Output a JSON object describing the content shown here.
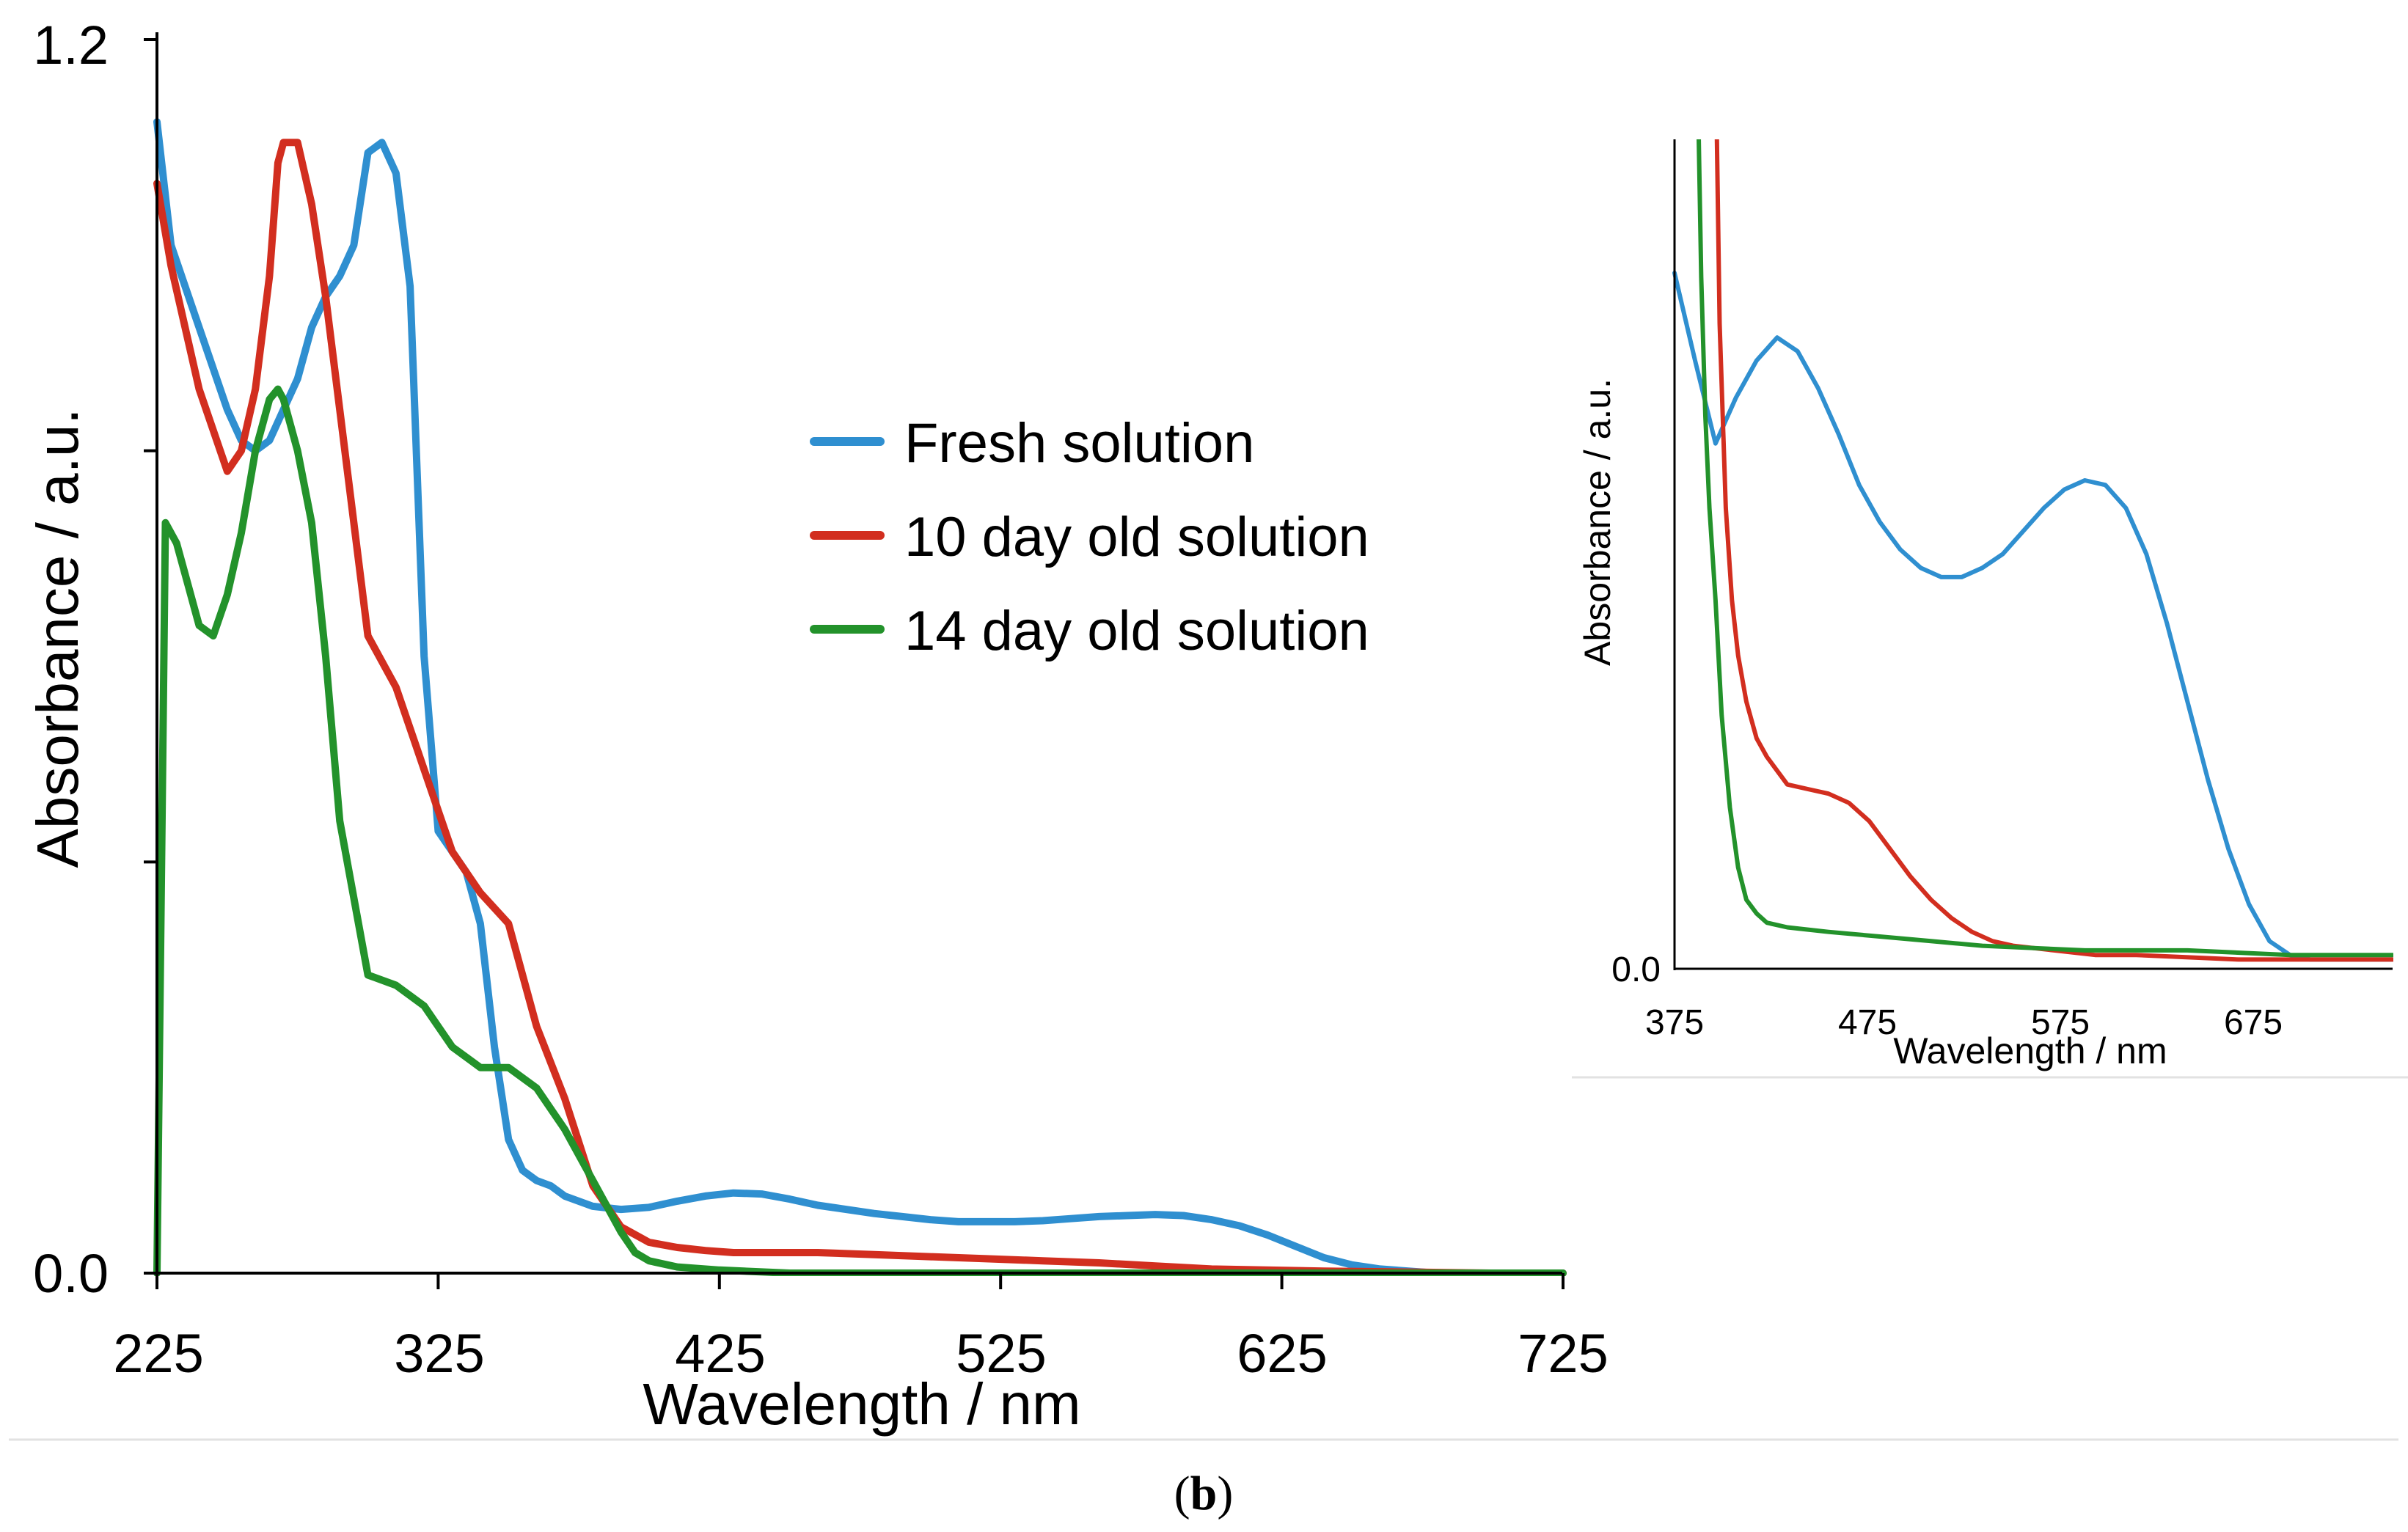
{
  "figure": {
    "panel_label_open": "(",
    "panel_label_letter": "b",
    "panel_label_close": ")"
  },
  "colors": {
    "fresh": "#2f8fd0",
    "ten_day": "#d22e1f",
    "fourteen_day": "#23922b",
    "axis": "#000000",
    "separator": "#e2e2e2"
  },
  "chart_data": [
    {
      "type": "line",
      "id": "main",
      "title": "",
      "xlabel": "Wavelength / nm",
      "ylabel": "Absorbance / a.u.",
      "xlim": [
        225,
        725
      ],
      "ylim": [
        0,
        1.2
      ],
      "x_ticks": [
        225,
        325,
        425,
        525,
        625,
        725
      ],
      "x_tick_labels": [
        "225",
        "325",
        "425",
        "525",
        "625",
        "725"
      ],
      "y_ticks": [
        0,
        0.4,
        0.8,
        1.2
      ],
      "y_tick_labels": [
        "0.0",
        "",
        "",
        "1.2"
      ],
      "grid": false,
      "legend_position": "center-right",
      "series": [
        {
          "name": "Fresh solution",
          "color_key": "fresh",
          "x": [
            225,
            230,
            240,
            250,
            255,
            260,
            265,
            270,
            275,
            280,
            285,
            290,
            295,
            300,
            305,
            310,
            315,
            320,
            325,
            330,
            335,
            340,
            345,
            350,
            355,
            360,
            365,
            370,
            380,
            390,
            400,
            410,
            420,
            430,
            440,
            450,
            460,
            470,
            480,
            490,
            500,
            510,
            520,
            530,
            540,
            550,
            560,
            570,
            580,
            590,
            600,
            610,
            620,
            630,
            640,
            650,
            660,
            670,
            680,
            700,
            725
          ],
          "y": [
            1.12,
            1.0,
            0.92,
            0.84,
            0.81,
            0.8,
            0.81,
            0.84,
            0.87,
            0.92,
            0.95,
            0.97,
            1.0,
            1.09,
            1.1,
            1.07,
            0.96,
            0.6,
            0.43,
            0.41,
            0.39,
            0.34,
            0.22,
            0.13,
            0.1,
            0.09,
            0.085,
            0.075,
            0.065,
            0.062,
            0.064,
            0.07,
            0.075,
            0.078,
            0.077,
            0.072,
            0.066,
            0.062,
            0.058,
            0.055,
            0.052,
            0.05,
            0.05,
            0.05,
            0.051,
            0.053,
            0.055,
            0.056,
            0.057,
            0.056,
            0.052,
            0.046,
            0.037,
            0.026,
            0.015,
            0.008,
            0.004,
            0.002,
            0.0,
            0.0,
            0.0
          ]
        },
        {
          "name": "10 day old solution",
          "color_key": "ten_day",
          "x": [
            225,
            230,
            240,
            250,
            255,
            260,
            265,
            268,
            270,
            275,
            280,
            285,
            290,
            300,
            310,
            320,
            330,
            340,
            350,
            360,
            370,
            380,
            390,
            400,
            410,
            420,
            430,
            440,
            460,
            480,
            500,
            520,
            540,
            560,
            580,
            600,
            640,
            700,
            725
          ],
          "y": [
            1.06,
            0.98,
            0.86,
            0.78,
            0.8,
            0.86,
            0.97,
            1.08,
            1.1,
            1.1,
            1.04,
            0.95,
            0.84,
            0.62,
            0.57,
            0.49,
            0.41,
            0.37,
            0.34,
            0.24,
            0.17,
            0.085,
            0.045,
            0.03,
            0.025,
            0.022,
            0.02,
            0.02,
            0.02,
            0.018,
            0.016,
            0.014,
            0.012,
            0.01,
            0.007,
            0.004,
            0.002,
            0.0,
            0.0
          ]
        },
        {
          "name": "14 day old solution",
          "color_key": "fourteen_day",
          "x": [
            225,
            228,
            232,
            236,
            240,
            245,
            250,
            255,
            260,
            265,
            268,
            270,
            275,
            280,
            285,
            290,
            300,
            310,
            320,
            330,
            340,
            350,
            360,
            370,
            380,
            390,
            395,
            400,
            410,
            425,
            450,
            500,
            600,
            725
          ],
          "y": [
            0.0,
            0.73,
            0.71,
            0.67,
            0.63,
            0.62,
            0.66,
            0.72,
            0.8,
            0.85,
            0.86,
            0.85,
            0.8,
            0.73,
            0.6,
            0.44,
            0.29,
            0.28,
            0.26,
            0.22,
            0.2,
            0.2,
            0.18,
            0.14,
            0.09,
            0.04,
            0.02,
            0.012,
            0.006,
            0.003,
            0.0,
            0.0,
            0.0,
            0.0
          ]
        }
      ]
    },
    {
      "type": "line",
      "id": "inset",
      "title": "",
      "xlabel": "Wavelength / nm",
      "ylabel": "Absorbance / a.u.",
      "xlim": [
        375,
        725
      ],
      "ylim": [
        0,
        0.18
      ],
      "x_ticks": [
        375,
        475,
        575,
        675
      ],
      "x_tick_labels": [
        "375",
        "475",
        "575",
        "675"
      ],
      "y_ticks": [
        0
      ],
      "y_tick_labels": [
        "0.0"
      ],
      "grid": false,
      "series": [
        {
          "name": "Fresh solution",
          "color_key": "fresh",
          "x": [
            375,
            385,
            395,
            405,
            415,
            425,
            435,
            445,
            455,
            465,
            475,
            485,
            495,
            505,
            515,
            525,
            535,
            545,
            555,
            565,
            575,
            585,
            595,
            605,
            615,
            625,
            635,
            645,
            655,
            665,
            675,
            685,
            695,
            705,
            715,
            725
          ],
          "y": [
            0.151,
            0.132,
            0.114,
            0.124,
            0.132,
            0.137,
            0.134,
            0.126,
            0.116,
            0.105,
            0.097,
            0.091,
            0.087,
            0.085,
            0.085,
            0.087,
            0.09,
            0.095,
            0.1,
            0.104,
            0.106,
            0.105,
            0.1,
            0.09,
            0.075,
            0.058,
            0.041,
            0.026,
            0.014,
            0.006,
            0.003,
            0.002,
            0.002,
            0.002,
            0.002,
            0.002
          ]
        },
        {
          "name": "10 day old solution",
          "color_key": "ten_day",
          "x": [
            395,
            397,
            400,
            403,
            406,
            410,
            415,
            420,
            430,
            440,
            450,
            460,
            470,
            480,
            490,
            500,
            510,
            520,
            530,
            540,
            560,
            580,
            600,
            650,
            700,
            725
          ],
          "y": [
            0.2,
            0.14,
            0.1,
            0.08,
            0.068,
            0.058,
            0.05,
            0.046,
            0.04,
            0.039,
            0.038,
            0.036,
            0.032,
            0.026,
            0.02,
            0.015,
            0.011,
            0.008,
            0.006,
            0.005,
            0.004,
            0.003,
            0.003,
            0.002,
            0.002,
            0.002
          ]
        },
        {
          "name": "14 day old solution",
          "color_key": "fourteen_day",
          "x": [
            386,
            388,
            390,
            392,
            395,
            398,
            402,
            406,
            410,
            415,
            420,
            430,
            450,
            475,
            500,
            525,
            575,
            625,
            675,
            725
          ],
          "y": [
            0.2,
            0.15,
            0.12,
            0.1,
            0.08,
            0.055,
            0.035,
            0.022,
            0.015,
            0.012,
            0.01,
            0.009,
            0.008,
            0.007,
            0.006,
            0.005,
            0.004,
            0.004,
            0.003,
            0.003
          ]
        }
      ]
    }
  ]
}
